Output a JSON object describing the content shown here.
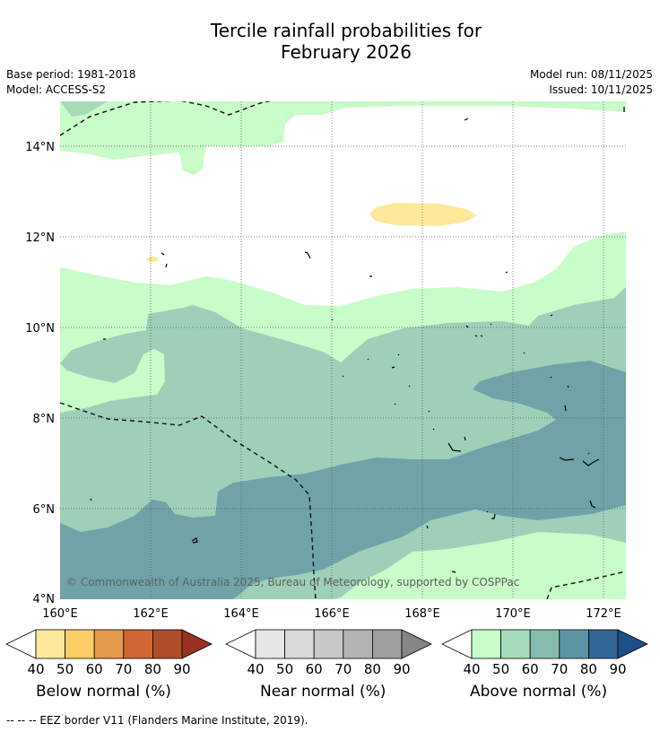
{
  "title_line1": "Tercile rainfall probabilities for",
  "title_line2": "February 2026",
  "meta": {
    "base_period": "Base period: 1981-2018",
    "model": "Model: ACCESS-S2",
    "model_run": "Model run: 08/11/2025",
    "issued": "Issued: 10/11/2025"
  },
  "map": {
    "copyright": "© Commonwealth of Australia 2025, Bureau of Meteorology, supported by COSPPac",
    "lon_labels": [
      "160°E",
      "162°E",
      "164°E",
      "166°E",
      "168°E",
      "170°E",
      "172°E"
    ],
    "lat_labels": [
      "14°N",
      "12°N",
      "10°N",
      "8°N",
      "6°N",
      "4°N"
    ]
  },
  "legends": {
    "below": {
      "label": "Below normal (%)",
      "ticks": [
        "40",
        "50",
        "60",
        "70",
        "80",
        "90"
      ],
      "colors": [
        "#fee89a",
        "#fdcd67",
        "#e4994b",
        "#cf6633",
        "#b04d2b",
        "#973222"
      ]
    },
    "near": {
      "label": "Near normal (%)",
      "ticks": [
        "40",
        "50",
        "60",
        "70",
        "80",
        "90"
      ],
      "colors": [
        "#e6e6e6",
        "#d9d9d9",
        "#c8c8c8",
        "#b3b3b3",
        "#9f9f9f",
        "#868686"
      ]
    },
    "above": {
      "label": "Above normal (%)",
      "ticks": [
        "40",
        "50",
        "60",
        "70",
        "80",
        "90"
      ],
      "colors": [
        "#c8fcc8",
        "#a6dbba",
        "#87bbad",
        "#5b94a2",
        "#326696",
        "#1e4f86"
      ]
    }
  },
  "footnote": "--  --  -- EEZ border V11 (Flanders Marine Institute, 2019)."
}
